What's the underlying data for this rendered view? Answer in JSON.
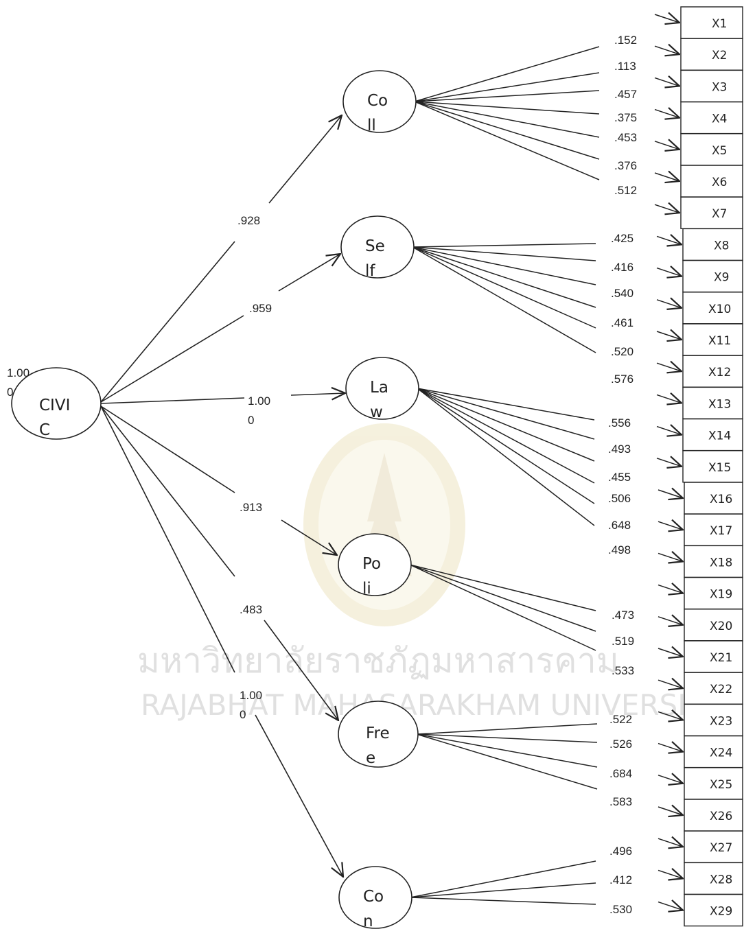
{
  "watermark": {
    "thai": "มหาวิทยาลัยราชภัฏมหาสารคาม",
    "english": "RAJABHAT MAHASARAKHAM UNIVERSITY"
  },
  "root": {
    "label_line1": "CIVI",
    "label_line2": "C",
    "variance_line1": "1.00",
    "variance_line2": "0"
  },
  "factors": [
    {
      "id": "coll",
      "line1": "Co",
      "line2": "ll",
      "loading_line1": ".928",
      "loading_line2": ""
    },
    {
      "id": "self",
      "line1": "Se",
      "line2": "lf",
      "loading_line1": ".959",
      "loading_line2": ""
    },
    {
      "id": "law",
      "line1": "La",
      "line2": "w",
      "loading_line1": "1.00",
      "loading_line2": "0"
    },
    {
      "id": "poli",
      "line1": "Po",
      "line2": "li",
      "loading_line1": ".913",
      "loading_line2": ""
    },
    {
      "id": "free",
      "line1": "Fre",
      "line2": "e",
      "loading_line1": ".483",
      "loading_line2": ""
    },
    {
      "id": "con",
      "line1": "Co",
      "line2": "n",
      "loading_line1": "1.00",
      "loading_line2": "0"
    }
  ],
  "indicators": [
    "X1",
    "X2",
    "X3",
    "X4",
    "X5",
    "X6",
    "X7",
    "X8",
    "X9",
    "X10",
    "X11",
    "X12",
    "X13",
    "X14",
    "X15",
    "X16",
    "X17",
    "X18",
    "X19",
    "X20",
    "X21",
    "X22",
    "X23",
    "X24",
    "X25",
    "X26",
    "X27",
    "X28",
    "X29"
  ],
  "item_loadings": [
    {
      "factor": "coll",
      "values": [
        ".152",
        ".113",
        ".457",
        ".375",
        ".453",
        ".376",
        ".512"
      ]
    },
    {
      "factor": "self",
      "values": [
        ".425",
        ".416",
        ".540",
        ".461",
        ".520",
        ".576"
      ]
    },
    {
      "factor": "law",
      "values": [
        ".556",
        ".493",
        ".455",
        ".506",
        ".648",
        ".498"
      ]
    },
    {
      "factor": "poli",
      "values": [
        ".473",
        ".519",
        ".533"
      ]
    },
    {
      "factor": "free",
      "values": [
        ".522",
        ".526",
        ".684",
        ".583"
      ]
    },
    {
      "factor": "con",
      "values": [
        ".496",
        ".412",
        ".530"
      ]
    }
  ]
}
